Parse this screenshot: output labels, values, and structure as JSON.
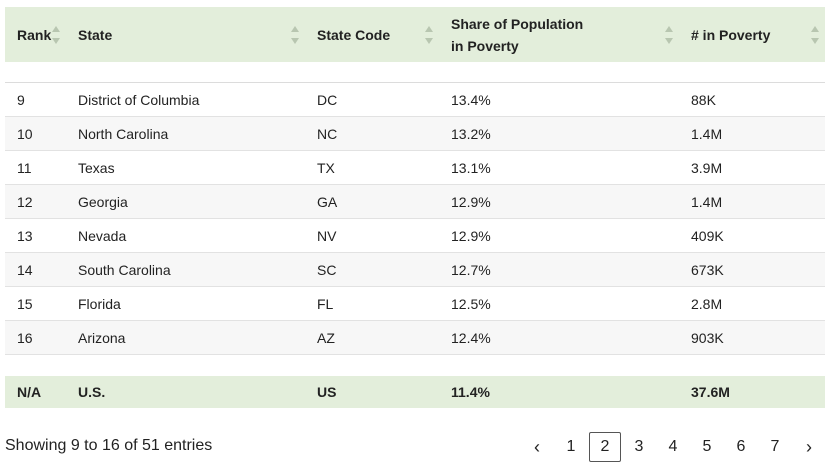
{
  "table": {
    "columns": [
      {
        "label": "Rank"
      },
      {
        "label": "State"
      },
      {
        "label": "State Code"
      },
      {
        "label": "Share of Population in Poverty"
      },
      {
        "label": "# in Poverty"
      }
    ],
    "rows": [
      {
        "rank": "9",
        "state": "District of Columbia",
        "code": "DC",
        "share": "13.4%",
        "count": "88K"
      },
      {
        "rank": "10",
        "state": "North Carolina",
        "code": "NC",
        "share": "13.2%",
        "count": "1.4M"
      },
      {
        "rank": "11",
        "state": "Texas",
        "code": "TX",
        "share": "13.1%",
        "count": "3.9M"
      },
      {
        "rank": "12",
        "state": "Georgia",
        "code": "GA",
        "share": "12.9%",
        "count": "1.4M"
      },
      {
        "rank": "13",
        "state": "Nevada",
        "code": "NV",
        "share": "12.9%",
        "count": "409K"
      },
      {
        "rank": "14",
        "state": "South Carolina",
        "code": "SC",
        "share": "12.7%",
        "count": "673K"
      },
      {
        "rank": "15",
        "state": "Florida",
        "code": "FL",
        "share": "12.5%",
        "count": "2.8M"
      },
      {
        "rank": "16",
        "state": "Arizona",
        "code": "AZ",
        "share": "12.4%",
        "count": "903K"
      }
    ],
    "total": {
      "rank": "N/A",
      "state": "U.S.",
      "code": "US",
      "share": "11.4%",
      "count": "37.6M"
    }
  },
  "footer": {
    "info": "Showing 9 to 16 of 51 entries",
    "pagination": {
      "prev": "‹",
      "pages": [
        "1",
        "2",
        "3",
        "4",
        "5",
        "6",
        "7"
      ],
      "active": "2",
      "next": "›"
    }
  },
  "colors": {
    "header_bg": "#e3eedb",
    "stripe_bg": "#f7f7f7"
  }
}
